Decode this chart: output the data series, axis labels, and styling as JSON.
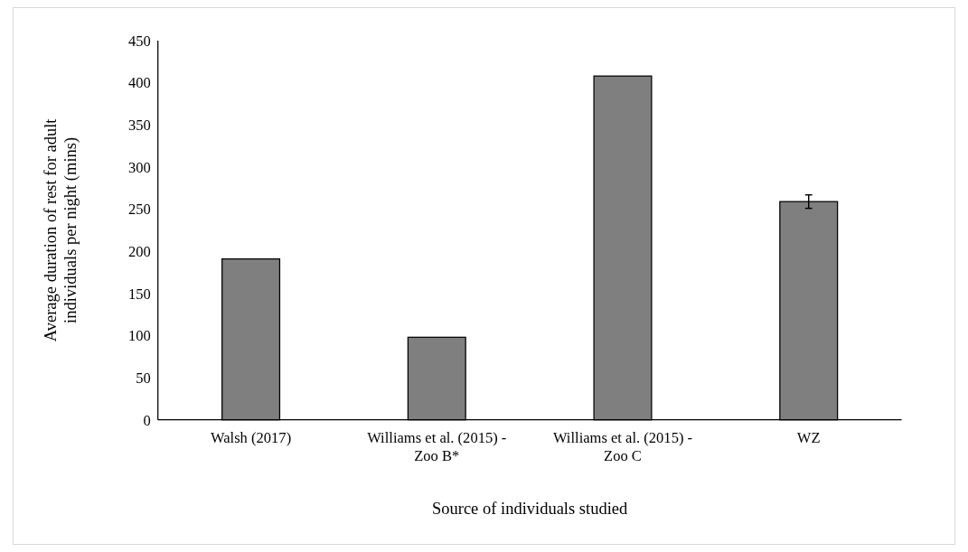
{
  "chart_data": {
    "type": "bar",
    "xlabel": "Source of individuals studied",
    "ylabel": "Average duration of rest for adult individuals per night (mins)",
    "categories": [
      "Walsh (2017)",
      "Williams et al. (2015) - Zoo B*",
      "Williams et al. (2015) - Zoo C",
      "WZ"
    ],
    "values": [
      191,
      98,
      408,
      259
    ],
    "errors": [
      null,
      null,
      null,
      8
    ],
    "color": "#7f7f7f",
    "ylim": [
      0,
      450
    ],
    "yticks": [
      0,
      50,
      100,
      150,
      200,
      250,
      300,
      350,
      400,
      450
    ],
    "grid": false
  }
}
